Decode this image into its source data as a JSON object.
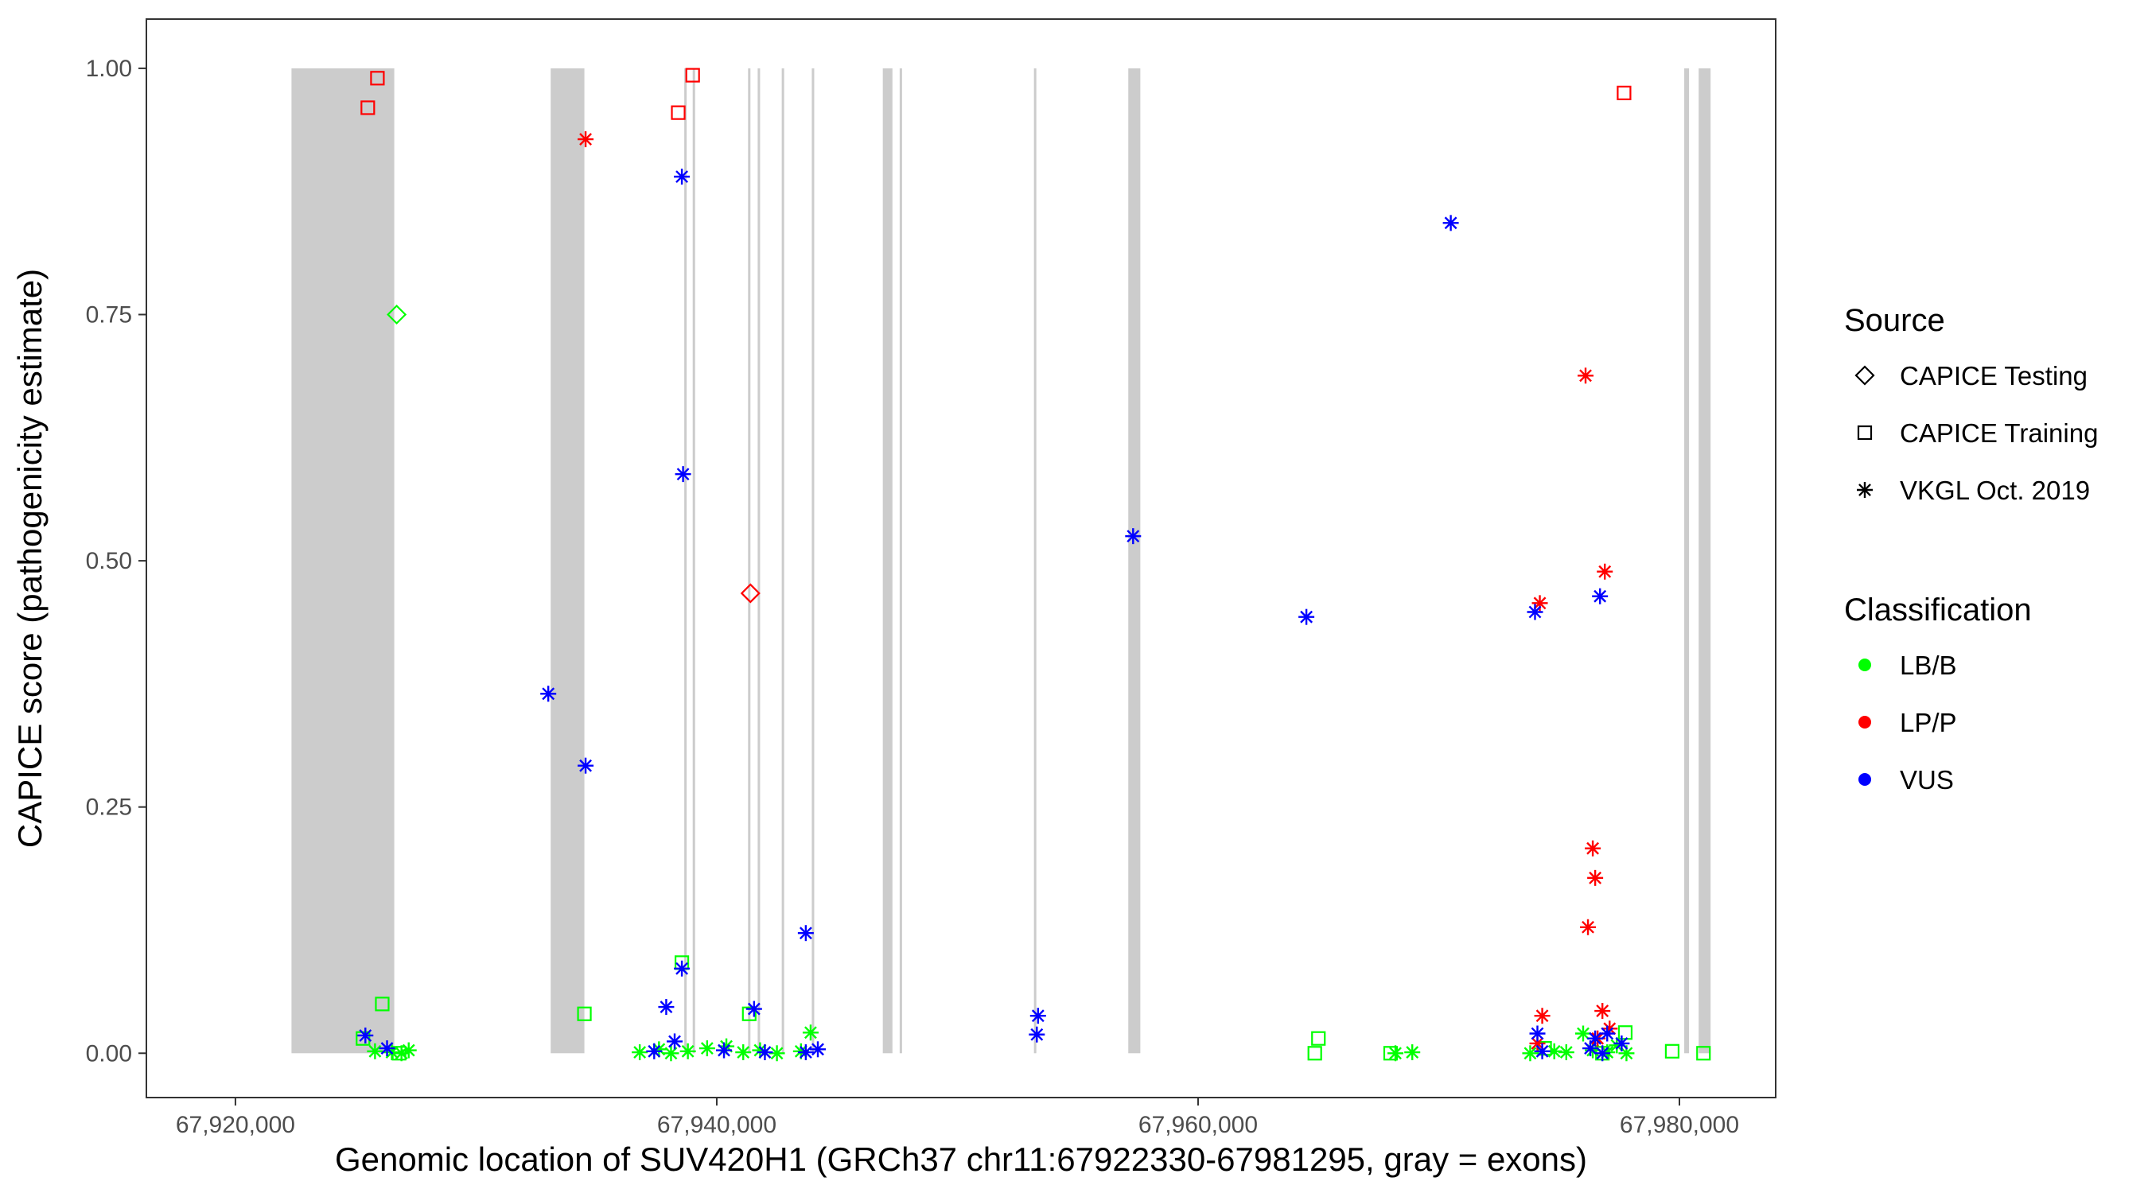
{
  "chart_data": {
    "type": "scatter",
    "xlabel": "Genomic location of SUV420H1 (GRCh37 chr11:67922330-67981295, gray = exons)",
    "ylabel": "CAPICE score (pathogenicity estimate)",
    "xlim": [
      67916300,
      67984000
    ],
    "ylim": [
      -0.045,
      1.05
    ],
    "x_ticks": [
      67920000,
      67940000,
      67960000,
      67980000
    ],
    "x_tick_labels": [
      "67,920,000",
      "67,940,000",
      "67,960,000",
      "67,980,000"
    ],
    "y_ticks": [
      0,
      0.25,
      0.5,
      0.75,
      1
    ],
    "y_tick_labels": [
      "0.00",
      "0.25",
      "0.50",
      "0.75",
      "1.00"
    ],
    "grid": false,
    "legend_placement": "right",
    "exons": [
      [
        67922330,
        67926600
      ],
      [
        67933100,
        67934500
      ],
      [
        67938650,
        67938750
      ],
      [
        67939000,
        67939100
      ],
      [
        67941300,
        67941400
      ],
      [
        67941700,
        67941800
      ],
      [
        67942700,
        67942800
      ],
      [
        67943950,
        67944050
      ],
      [
        67946900,
        67947300
      ],
      [
        67947600,
        67947700
      ],
      [
        67953180,
        67953260
      ],
      [
        67957100,
        67957600
      ],
      [
        67980200,
        67980400
      ],
      [
        67980800,
        67981295
      ]
    ],
    "legend": {
      "source_title": "Source",
      "source_items": [
        {
          "label": "CAPICE Testing",
          "shape": "diamond"
        },
        {
          "label": "CAPICE Training",
          "shape": "square"
        },
        {
          "label": "VKGL Oct. 2019",
          "shape": "asterisk"
        }
      ],
      "classification_title": "Classification",
      "classification_items": [
        {
          "label": "LB/B",
          "color": "#00ff00"
        },
        {
          "label": "LP/P",
          "color": "#ff0000"
        },
        {
          "label": "VUS",
          "color": "#0000ff"
        }
      ]
    },
    "series": [
      {
        "name": "CAPICE Testing",
        "class": "LB/B",
        "shape": "diamond",
        "color": "#00ff00",
        "x": [
          67926700
        ],
        "y": [
          0.75
        ]
      },
      {
        "name": "CAPICE Testing",
        "class": "LP/P",
        "shape": "diamond",
        "color": "#ff0000",
        "x": [
          67941400
        ],
        "y": [
          0.467
        ]
      },
      {
        "name": "CAPICE Training",
        "class": "LP/P",
        "shape": "square",
        "color": "#ff0000",
        "x": [
          67925500,
          67925900,
          67938400,
          67939000,
          67977700
        ],
        "y": [
          0.96,
          0.99,
          0.955,
          0.993,
          0.975
        ]
      },
      {
        "name": "CAPICE Training",
        "class": "LB/B",
        "shape": "square",
        "color": "#00ff00",
        "x": [
          67926100,
          67934500,
          67938550,
          67941350,
          67964850,
          67965000,
          67977750,
          67979700,
          67981000,
          67925300,
          67926800,
          67968000,
          67974400,
          67976800
        ],
        "y": [
          0.05,
          0.04,
          0.092,
          0.04,
          0.0,
          0.015,
          0.021,
          0.002,
          0.0,
          0.015,
          0.0,
          0.0,
          0.005,
          0.0
        ]
      },
      {
        "name": "VKGL Oct. 2019",
        "class": "VUS",
        "shape": "asterisk",
        "color": "#0000ff",
        "x": [
          67933000,
          67934550,
          67938550,
          67938600,
          67938550,
          67943700,
          67941550,
          67937900,
          67938250,
          67957300,
          67953350,
          67953300,
          67964500,
          67970500,
          67974000,
          67976700,
          67925400,
          67926300,
          67937400,
          67940300,
          67942000,
          67943700,
          67944200,
          67974100,
          67974300,
          67976500,
          67976800,
          67977000,
          67977600,
          67976300
        ],
        "y": [
          0.365,
          0.292,
          0.89,
          0.588,
          0.086,
          0.122,
          0.045,
          0.047,
          0.012,
          0.525,
          0.038,
          0.019,
          0.443,
          0.843,
          0.448,
          0.464,
          0.018,
          0.005,
          0.002,
          0.003,
          0.001,
          0.001,
          0.004,
          0.02,
          0.002,
          0.015,
          0.0,
          0.02,
          0.01,
          0.005
        ]
      },
      {
        "name": "VKGL Oct. 2019",
        "class": "LP/P",
        "shape": "asterisk",
        "color": "#ff0000",
        "x": [
          67934550,
          67976100,
          67974200,
          67976900,
          67976400,
          67976500,
          67976200,
          67974300,
          67976800,
          67976600,
          67977100,
          67974100
        ],
        "y": [
          0.928,
          0.688,
          0.457,
          0.489,
          0.208,
          0.178,
          0.128,
          0.038,
          0.043,
          0.015,
          0.025,
          0.01
        ]
      },
      {
        "name": "VKGL Oct. 2019",
        "class": "LB/B",
        "shape": "asterisk",
        "color": "#00ff00",
        "x": [
          67925800,
          67926500,
          67926900,
          67927200,
          67936800,
          67937600,
          67938100,
          67938800,
          67939600,
          67940400,
          67941100,
          67941800,
          67942500,
          67943500,
          67943900,
          67968200,
          67968900,
          67973800,
          67974800,
          67975300,
          67976000,
          67976400,
          67977000,
          67977400,
          67977800
        ],
        "y": [
          0.002,
          0.001,
          0.0,
          0.003,
          0.001,
          0.004,
          0.0,
          0.002,
          0.005,
          0.007,
          0.001,
          0.003,
          0.0,
          0.002,
          0.021,
          0.0,
          0.001,
          0.0,
          0.002,
          0.001,
          0.02,
          0.003,
          0.001,
          0.008,
          0.0
        ]
      }
    ]
  }
}
